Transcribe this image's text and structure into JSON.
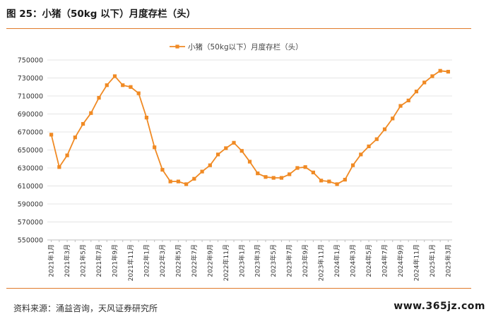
{
  "figure": {
    "title": "图 25：小猪（50kg 以下）月度存栏（头）",
    "source": "资料来源：涌益咨询，天风证券研究所",
    "watermark": "www.365jz.com"
  },
  "colors": {
    "series": "#f08a24",
    "rule": "#e07a2a",
    "grid": "#e4e4e4",
    "axis": "#bfbfbf"
  },
  "chart_data": {
    "type": "line",
    "title": "",
    "xlabel": "",
    "ylabel": "",
    "ylim": [
      550000,
      750000
    ],
    "yticks": [
      550000,
      570000,
      590000,
      610000,
      630000,
      650000,
      670000,
      690000,
      710000,
      730000,
      750000
    ],
    "grid": "horizontal",
    "legend_position": "top-center",
    "x": [
      "2021年1月",
      "2021年2月",
      "2021年3月",
      "2021年4月",
      "2021年5月",
      "2021年6月",
      "2021年7月",
      "2021年8月",
      "2021年9月",
      "2021年10月",
      "2021年11月",
      "2021年12月",
      "2022年1月",
      "2022年2月",
      "2022年3月",
      "2022年4月",
      "2022年5月",
      "2022年6月",
      "2022年7月",
      "2022年8月",
      "2022年9月",
      "2022年10月",
      "2022年11月",
      "2022年12月",
      "2023年1月",
      "2023年2月",
      "2023年3月",
      "2023年4月",
      "2023年5月",
      "2023年6月",
      "2023年7月",
      "2023年8月",
      "2023年9月",
      "2023年10月",
      "2023年11月",
      "2023年12月",
      "2024年1月",
      "2024年2月",
      "2024年3月",
      "2024年4月",
      "2024年5月",
      "2024年6月",
      "2024年7月",
      "2024年8月",
      "2024年9月",
      "2024年10月",
      "2024年11月",
      "2024年12月",
      "2025年1月",
      "2025年2月",
      "2025年3月"
    ],
    "x_tick_labels": [
      "2021年1月",
      "2021年3月",
      "2021年5月",
      "2021年7月",
      "2021年9月",
      "2021年11月",
      "2022年1月",
      "2022年3月",
      "2022年5月",
      "2022年7月",
      "2022年9月",
      "2022年11月",
      "2023年1月",
      "2023年3月",
      "2023年5月",
      "2023年7月",
      "2023年9月",
      "2023年11月",
      "2024年1月",
      "2024年3月",
      "2024年5月",
      "2024年7月",
      "2024年9月",
      "2024年11月",
      "2025年1月",
      "2025年3月"
    ],
    "series": [
      {
        "name": "小猪（50kg以下）月度存栏（头）",
        "values": [
          667000,
          631000,
          644000,
          664000,
          679000,
          691000,
          708000,
          722000,
          732000,
          722000,
          720000,
          713000,
          686000,
          653000,
          628000,
          615000,
          615000,
          612000,
          618000,
          626000,
          633000,
          645000,
          652000,
          658000,
          649000,
          637000,
          624000,
          620000,
          619000,
          619000,
          623000,
          630000,
          631000,
          625000,
          616000,
          615000,
          612000,
          617000,
          633000,
          645000,
          654000,
          662000,
          673000,
          685000,
          699000,
          705000,
          715000,
          725000,
          732000,
          738000,
          737000
        ]
      }
    ]
  }
}
